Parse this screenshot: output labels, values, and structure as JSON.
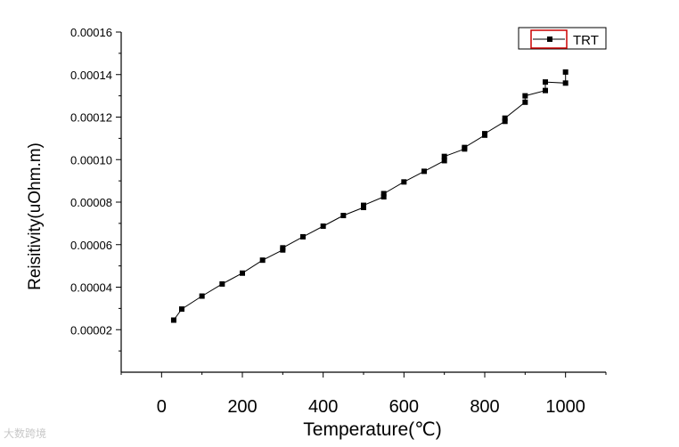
{
  "chart_data": {
    "type": "line",
    "xlabel": "Temperature(℃)",
    "ylabel": "Reisitivity(uOhm.m)",
    "xlim": [
      -100,
      1100
    ],
    "ylim": [
      0.0,
      0.00016
    ],
    "x_ticks": [
      "0",
      "200",
      "400",
      "600",
      "800",
      "1000"
    ],
    "y_ticks": [
      "0.00002",
      "0.00004",
      "0.00006",
      "0.00008",
      "0.00010",
      "0.00012",
      "0.00014",
      "0.00016"
    ],
    "grid": false,
    "legend": "top-right",
    "series": [
      {
        "name": "TRT",
        "marker": "square",
        "color": "#000000",
        "x": [
          30,
          50,
          100,
          150,
          200,
          250,
          300,
          300,
          350,
          400,
          450,
          500,
          500,
          550,
          550,
          600,
          650,
          700,
          700,
          750,
          750,
          800,
          800,
          850,
          850,
          900,
          900,
          950,
          950,
          1000,
          1000
        ],
        "y": [
          2.45e-05,
          2.97e-05,
          3.58e-05,
          4.15e-05,
          4.66e-05,
          5.27e-05,
          5.75e-05,
          5.85e-05,
          6.37e-05,
          6.87e-05,
          7.37e-05,
          7.75e-05,
          7.85e-05,
          8.25e-05,
          8.4e-05,
          8.95e-05,
          9.45e-05,
          9.95e-05,
          0.0001015,
          0.000105,
          0.0001057,
          0.0001115,
          0.0001122,
          0.000118,
          0.0001195,
          0.000127,
          0.00013,
          0.0001325,
          0.0001365,
          0.000136,
          0.0001412
        ]
      }
    ]
  },
  "watermark": {
    "text": "大数跨境"
  }
}
